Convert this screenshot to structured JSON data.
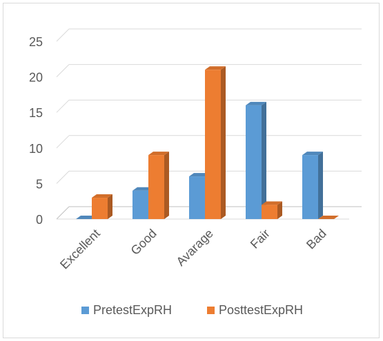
{
  "chart_data": {
    "type": "bar",
    "title": "",
    "xlabel": "",
    "ylabel": "",
    "categories": [
      "Excellent",
      "Good",
      "Avarage",
      "Fair",
      "Bad"
    ],
    "series": [
      {
        "name": "PretestExpRH",
        "values": [
          0,
          4,
          6,
          16,
          9
        ],
        "color": "#5b9bd5"
      },
      {
        "name": "PosttestExpRH",
        "values": [
          3,
          9,
          21,
          2,
          0
        ],
        "color": "#ed7d31"
      }
    ],
    "ylim": [
      0,
      25
    ],
    "yticks": [
      0,
      5,
      10,
      15,
      20,
      25
    ],
    "grid": true,
    "style": "3d-clustered-column",
    "legend_position": "bottom"
  }
}
